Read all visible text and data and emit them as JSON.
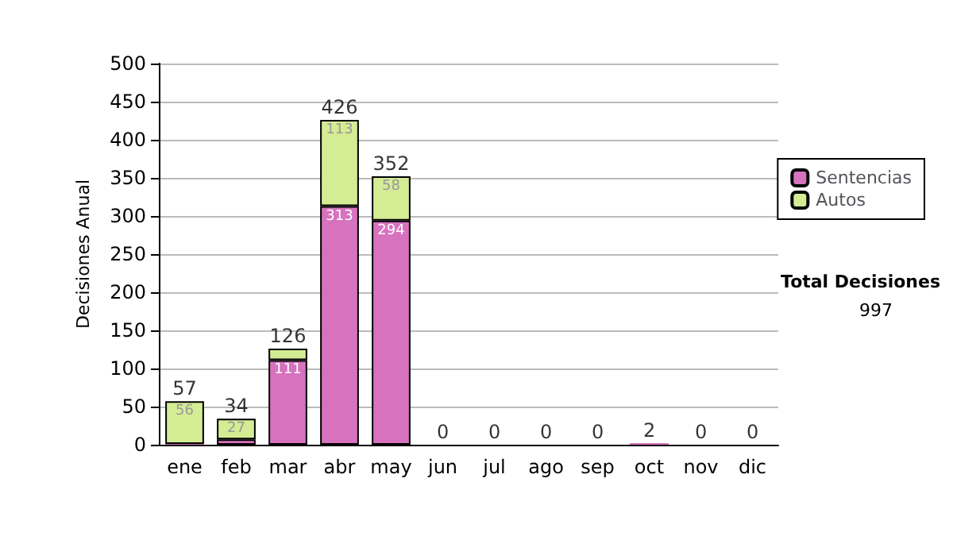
{
  "chart_data": {
    "type": "bar",
    "stacked": true,
    "ylabel": "Decisiones Anual",
    "categories": [
      "ene",
      "feb",
      "mar",
      "abr",
      "may",
      "jun",
      "jul",
      "ago",
      "sep",
      "oct",
      "nov",
      "dic"
    ],
    "series": [
      {
        "name": "Sentencias",
        "color": "#d672be",
        "values": [
          1,
          7,
          111,
          313,
          294,
          0,
          0,
          0,
          0,
          2,
          0,
          0
        ],
        "value_labels": [
          null,
          null,
          "111",
          "313",
          "294",
          null,
          null,
          null,
          null,
          null,
          null,
          null
        ]
      },
      {
        "name": "Autos",
        "color": "#d4ec94",
        "values": [
          56,
          27,
          15,
          113,
          58,
          0,
          0,
          0,
          0,
          0,
          0,
          0
        ],
        "value_labels": [
          "56",
          "27",
          null,
          "113",
          "58",
          null,
          null,
          null,
          null,
          null,
          null,
          null
        ]
      }
    ],
    "totals": [
      "57",
      "34",
      "126",
      "426",
      "352",
      "0",
      "0",
      "0",
      "0",
      "2",
      "0",
      "0"
    ],
    "ylim": [
      0,
      500
    ],
    "yticks": [
      0,
      50,
      100,
      150,
      200,
      250,
      300,
      350,
      400,
      450,
      500
    ],
    "grid": "y",
    "legend": "right",
    "annotations": [
      "Total Decisiones",
      "997"
    ]
  }
}
